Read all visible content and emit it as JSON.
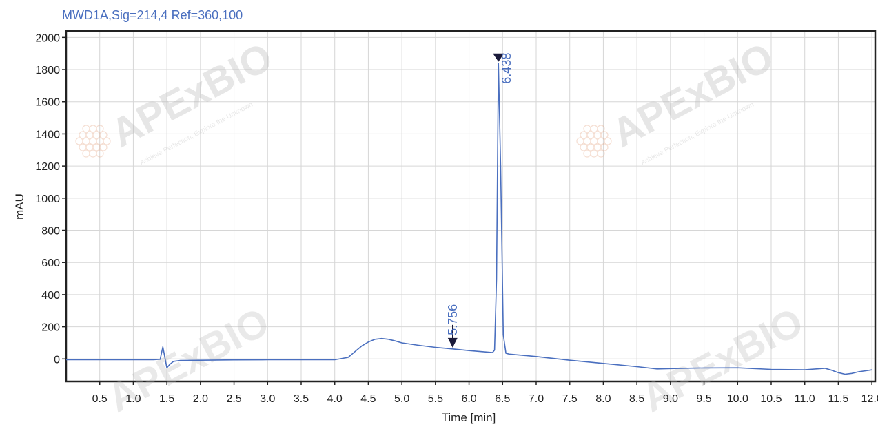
{
  "chart_data": {
    "type": "line",
    "title": "MWD1A,Sig=214,4  Ref=360,100",
    "xlabel": "Time [min]",
    "ylabel": "mAU",
    "xlim": [
      0.0,
      12.05
    ],
    "ylim": [
      -140,
      2040
    ],
    "x_ticks": [
      0.5,
      1.0,
      1.5,
      2.0,
      2.5,
      3.0,
      3.5,
      4.0,
      4.5,
      5.0,
      5.5,
      6.0,
      6.5,
      7.0,
      7.5,
      8.0,
      8.5,
      9.0,
      9.5,
      10.0,
      10.5,
      11.0,
      11.5,
      12.0
    ],
    "x_tick_labels": [
      "0.5",
      "1.0",
      "1.5",
      "2.0",
      "2.5",
      "3.0",
      "3.5",
      "4.0",
      "4.5",
      "5.0",
      "5.5",
      "6.0",
      "6.5",
      "7.0",
      "7.5",
      "8.0",
      "8.5",
      "9.0",
      "9.5",
      "10.0",
      "10.5",
      "11.0",
      "11.5",
      "12.0"
    ],
    "y_ticks": [
      0,
      200,
      400,
      600,
      800,
      1000,
      1200,
      1400,
      1600,
      1800,
      2000
    ],
    "y_tick_labels": [
      "0",
      "200",
      "400",
      "600",
      "800",
      "1000",
      "1200",
      "1400",
      "1600",
      "1800",
      "2000"
    ],
    "grid": true,
    "series_color": "#4a6fbf",
    "series": [
      {
        "x": [
          0.0,
          0.5,
          1.0,
          1.3,
          1.4,
          1.44,
          1.47,
          1.5,
          1.54,
          1.6,
          1.7,
          2.0,
          2.5,
          3.0,
          3.5,
          4.0,
          4.2,
          4.3,
          4.4,
          4.5,
          4.6,
          4.7,
          4.8,
          4.9,
          5.0,
          5.25,
          5.5,
          5.756,
          6.0,
          6.2,
          6.35,
          6.38,
          6.41,
          6.438,
          6.47,
          6.51,
          6.55,
          6.6,
          7.0,
          7.5,
          8.0,
          8.5,
          8.8,
          9.0,
          9.5,
          10.0,
          10.5,
          11.0,
          11.3,
          11.4,
          11.5,
          11.6,
          11.7,
          11.8,
          12.0
        ],
        "y": [
          -5,
          -5,
          -5,
          -5,
          -2,
          75,
          10,
          -55,
          -35,
          -15,
          -10,
          -8,
          -6,
          -5,
          -5,
          -5,
          10,
          45,
          80,
          105,
          122,
          127,
          122,
          112,
          100,
          85,
          72,
          62,
          52,
          45,
          40,
          55,
          500,
          1840,
          1200,
          150,
          35,
          30,
          15,
          -8,
          -28,
          -48,
          -62,
          -60,
          -56,
          -55,
          -65,
          -67,
          -58,
          -70,
          -85,
          -95,
          -90,
          -80,
          -68
        ]
      }
    ],
    "annotations": [
      {
        "text": "6.438",
        "x": 6.438,
        "y": 1840
      },
      {
        "text": "5.756",
        "x": 5.756,
        "y": 62
      }
    ],
    "watermark_text": "APExBIO",
    "watermark_tagline": "Achieve Perfection, Explore the Unknown"
  }
}
